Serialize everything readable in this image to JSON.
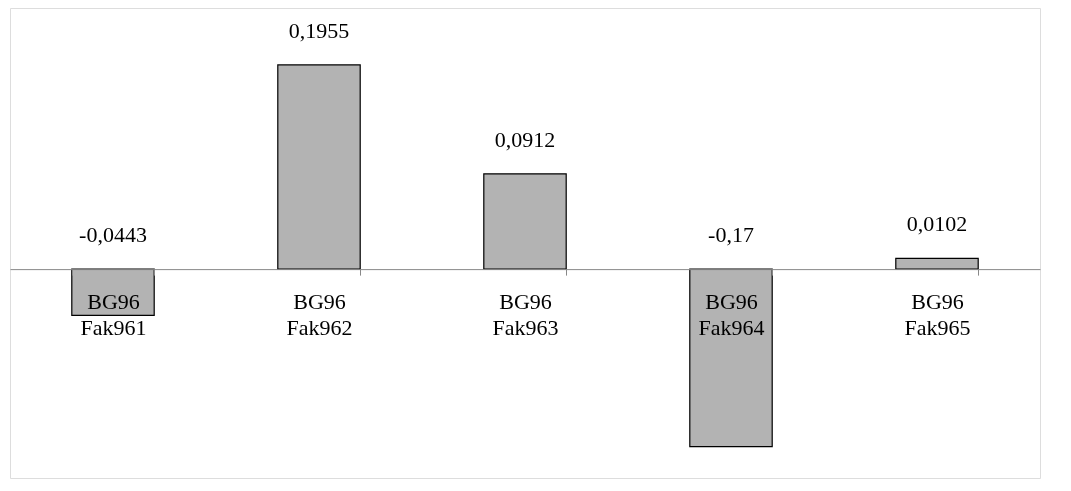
{
  "chart_data": {
    "type": "bar",
    "categories": [
      "BG96\nFak961",
      "BG96\nFak962",
      "BG96\nFak963",
      "BG96\nFak964",
      "BG96\nFak965"
    ],
    "values": [
      -0.0443,
      0.1955,
      0.0912,
      -0.17,
      0.0102
    ],
    "color": "#b3b3b3",
    "ylim": [
      -0.2,
      0.25
    ],
    "data_labels": true,
    "value_labels": [
      "-0,0443",
      "0,1955",
      "0,0912",
      "-0,17",
      "0,0102"
    ],
    "grid": false
  }
}
